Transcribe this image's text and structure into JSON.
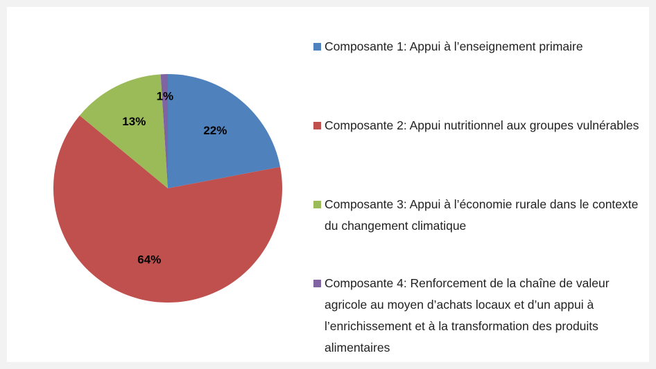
{
  "chart_data": {
    "type": "pie",
    "categories": [
      "Composante 1: Appui à l’enseignement primaire",
      "Composante 2: Appui nutritionnel aux groupes vulnérables",
      "Composante 3: Appui à l’économie rurale dans le contexte du changement climatique",
      "Composante 4: Renforcement de la chaîne de valeur agricole au moyen d’achats locaux et d’un appui à l’enrichissement et à la transformation des produits alimentaires"
    ],
    "values": [
      22,
      64,
      13,
      1
    ],
    "value_labels": [
      "22%",
      "64%",
      "13%",
      "1%"
    ],
    "colors": [
      "#4f81bd",
      "#c0504d",
      "#9bbb59",
      "#8064a2"
    ],
    "legend": "right"
  }
}
